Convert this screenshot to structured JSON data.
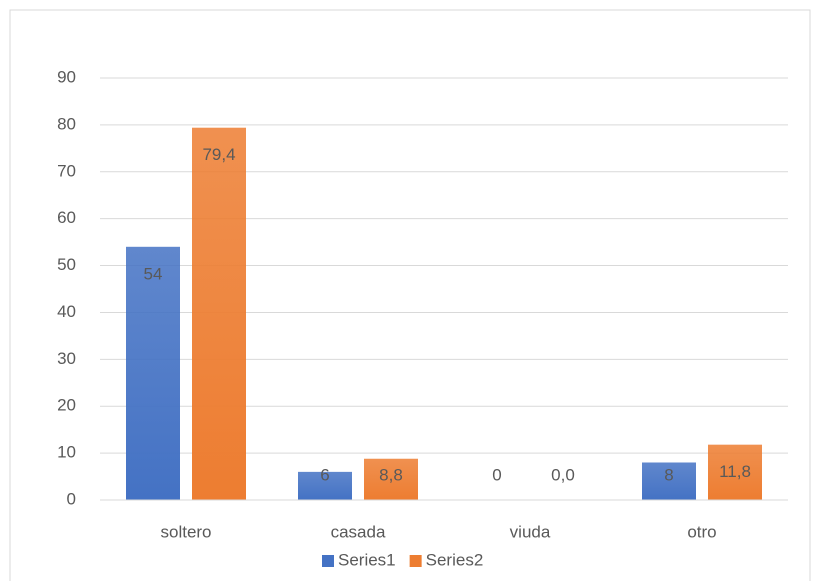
{
  "chart_data": {
    "type": "bar",
    "categories": [
      "soltero",
      "casada",
      "viuda",
      "otro"
    ],
    "series": [
      {
        "name": "Series1",
        "color": "#4472c4",
        "values": [
          54,
          6,
          0,
          8
        ]
      },
      {
        "name": "Series2",
        "color": "#ed7d31",
        "values": [
          79.4,
          8.8,
          0,
          11.8
        ],
        "value_labels": [
          "79,4",
          "8,8",
          "0,0",
          "11,8"
        ]
      }
    ],
    "ylim": [
      0,
      90
    ],
    "yticks": [
      0,
      10,
      20,
      30,
      40,
      50,
      60,
      70,
      80,
      90
    ],
    "grid": true,
    "legend": "bottom"
  }
}
